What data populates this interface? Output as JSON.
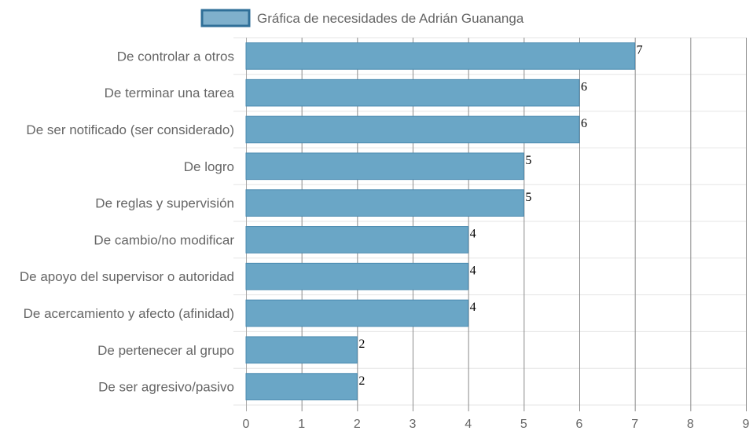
{
  "chart_data": {
    "type": "bar",
    "orientation": "horizontal",
    "categories": [
      "De controlar a otros",
      "De terminar una tarea",
      "De ser notificado (ser considerado)",
      "De logro",
      "De reglas y supervisión",
      "De cambio/no modificar",
      "De apoyo del supervisor o autoridad",
      "De acercamiento y afecto (afinidad)",
      "De pertenecer al grupo",
      "De ser agresivo/pasivo"
    ],
    "series": [
      {
        "name": "Gráfica de necesidades de Adrián Guananga",
        "values": [
          7,
          6,
          6,
          5,
          5,
          4,
          4,
          4,
          2,
          2
        ]
      }
    ],
    "xlim": [
      0,
      9
    ],
    "xticks": [
      0,
      1,
      2,
      3,
      4,
      5,
      6,
      7,
      8,
      9
    ],
    "grid": true,
    "data_labels": true,
    "legend_position": "top",
    "colors": {
      "bar_fill": "#6aa6c6",
      "bar_stroke": "#4a8ab0",
      "legend_fill": "#7fb0cc",
      "legend_stroke": "#2f6f98",
      "grid_vertical": "#8c8c8c",
      "grid_horizontal": "#e5e5e5"
    }
  }
}
